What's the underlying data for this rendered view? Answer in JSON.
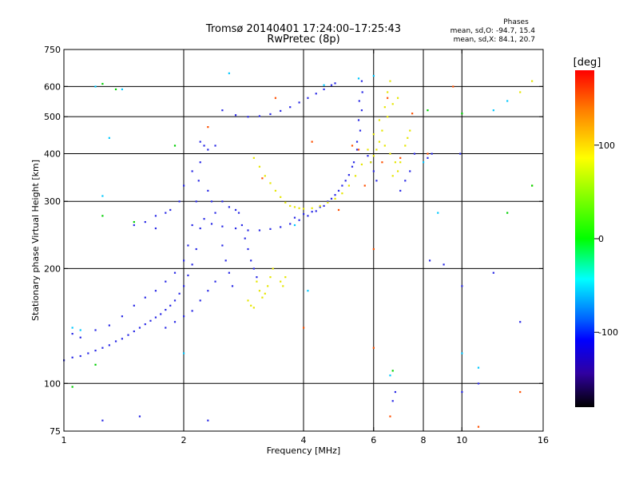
{
  "chart_data": {
    "type": "scatter",
    "title": "Tromsø 20140401 17:24:00–17:25:43",
    "subtitle": "RwPretec (8p)",
    "xlabel": "Frequency [MHz]",
    "ylabel": "Stationary phase Virtual Height [km]",
    "xscale": "log",
    "yscale": "log",
    "xlim": [
      1,
      16
    ],
    "ylim": [
      75,
      750
    ],
    "xticks": [
      1,
      2,
      4,
      6,
      8,
      10,
      16
    ],
    "xtick_labels": [
      "1",
      "2",
      "4",
      "6",
      "8",
      "10",
      "16"
    ],
    "yticks": [
      75,
      100,
      200,
      300,
      400,
      500,
      600,
      750
    ],
    "ytick_labels": [
      "75",
      "100",
      "200",
      "300",
      "400",
      "500",
      "600",
      "750"
    ],
    "x_gridlines": [
      2,
      4,
      6,
      8,
      10
    ],
    "y_gridlines": [
      100,
      200,
      300,
      400,
      500,
      600
    ],
    "grid": true,
    "phase_stats": {
      "title": "Phases",
      "line1": "mean, sd,O:  -94.7, 15.4",
      "line2": "mean, sd,X:  84.1, 20.7"
    },
    "colorbar": {
      "label": "[deg]",
      "min": -180,
      "max": 180,
      "ticks": [
        100,
        0,
        -100
      ],
      "tick_labels": [
        "100",
        "0",
        "-100"
      ],
      "colors": [
        "#ff0000",
        "#ff8000",
        "#ffff00",
        "#00ff00",
        "#00ffff",
        "#0060ff",
        "#0000ff",
        "#3000a0",
        "#000000"
      ]
    },
    "series": [
      {
        "color": "#2a2ae6",
        "phase": -95,
        "points": [
          [
            1.0,
            115
          ],
          [
            1.05,
            117
          ],
          [
            1.1,
            118
          ],
          [
            1.15,
            120
          ],
          [
            1.2,
            122
          ],
          [
            1.25,
            124
          ],
          [
            1.3,
            126
          ],
          [
            1.35,
            129
          ],
          [
            1.4,
            131
          ],
          [
            1.45,
            134
          ],
          [
            1.5,
            137
          ],
          [
            1.55,
            140
          ],
          [
            1.6,
            143
          ],
          [
            1.65,
            146
          ],
          [
            1.7,
            149
          ],
          [
            1.75,
            152
          ],
          [
            1.8,
            156
          ],
          [
            1.85,
            160
          ],
          [
            1.9,
            165
          ],
          [
            1.95,
            172
          ],
          [
            2.0,
            180
          ],
          [
            2.05,
            192
          ],
          [
            2.1,
            205
          ],
          [
            2.15,
            225
          ],
          [
            2.2,
            255
          ],
          [
            2.25,
            270
          ],
          [
            2.35,
            262
          ],
          [
            2.5,
            258
          ],
          [
            2.7,
            255
          ],
          [
            2.9,
            252
          ],
          [
            3.1,
            252
          ],
          [
            3.3,
            254
          ],
          [
            3.5,
            257
          ],
          [
            3.7,
            262
          ],
          [
            3.9,
            268
          ],
          [
            4.1,
            275
          ],
          [
            4.3,
            283
          ],
          [
            4.5,
            292
          ],
          [
            4.7,
            305
          ],
          [
            4.9,
            320
          ],
          [
            5.1,
            340
          ],
          [
            5.3,
            370
          ],
          [
            5.45,
            410
          ],
          [
            5.55,
            460
          ],
          [
            5.6,
            520
          ],
          [
            5.62,
            580
          ],
          [
            5.6,
            620
          ],
          [
            2.5,
            520
          ],
          [
            2.7,
            505
          ],
          [
            2.9,
            500
          ],
          [
            3.1,
            502
          ],
          [
            3.3,
            508
          ],
          [
            3.5,
            518
          ],
          [
            3.7,
            530
          ],
          [
            3.9,
            545
          ],
          [
            4.1,
            560
          ],
          [
            4.3,
            575
          ],
          [
            4.5,
            590
          ],
          [
            4.7,
            605
          ],
          [
            4.8,
            612
          ],
          [
            1.05,
            135
          ],
          [
            1.1,
            132
          ],
          [
            1.2,
            138
          ],
          [
            1.3,
            142
          ],
          [
            1.4,
            150
          ],
          [
            1.5,
            160
          ],
          [
            1.6,
            168
          ],
          [
            1.7,
            175
          ],
          [
            1.8,
            185
          ],
          [
            1.9,
            195
          ],
          [
            2.0,
            210
          ],
          [
            2.05,
            230
          ],
          [
            2.1,
            260
          ],
          [
            2.15,
            300
          ],
          [
            2.18,
            340
          ],
          [
            2.2,
            380
          ],
          [
            2.1,
            360
          ],
          [
            2.0,
            330
          ],
          [
            1.95,
            300
          ],
          [
            1.85,
            285
          ],
          [
            1.8,
            280
          ],
          [
            1.7,
            275
          ],
          [
            1.6,
            265
          ],
          [
            1.5,
            260
          ],
          [
            1.7,
            255
          ],
          [
            2.3,
            320
          ],
          [
            2.35,
            300
          ],
          [
            2.4,
            280
          ],
          [
            2.5,
            230
          ],
          [
            2.55,
            210
          ],
          [
            2.6,
            195
          ],
          [
            2.65,
            180
          ],
          [
            2.4,
            185
          ],
          [
            2.3,
            175
          ],
          [
            2.2,
            165
          ],
          [
            2.1,
            155
          ],
          [
            2.0,
            150
          ],
          [
            1.9,
            145
          ],
          [
            1.8,
            140
          ],
          [
            2.75,
            280
          ],
          [
            2.8,
            260
          ],
          [
            2.85,
            240
          ],
          [
            2.9,
            225
          ],
          [
            2.95,
            210
          ],
          [
            3.0,
            200
          ],
          [
            3.05,
            190
          ],
          [
            2.5,
            300
          ],
          [
            2.6,
            290
          ],
          [
            2.7,
            285
          ],
          [
            2.2,
            430
          ],
          [
            2.25,
            420
          ],
          [
            2.3,
            410
          ],
          [
            2.4,
            420
          ],
          [
            3.8,
            272
          ],
          [
            4.0,
            278
          ],
          [
            4.2,
            282
          ],
          [
            4.4,
            290
          ],
          [
            4.6,
            300
          ],
          [
            4.8,
            312
          ],
          [
            5.0,
            330
          ],
          [
            5.2,
            352
          ],
          [
            5.35,
            380
          ],
          [
            5.45,
            430
          ],
          [
            5.5,
            490
          ],
          [
            5.52,
            550
          ],
          [
            5.8,
            395
          ],
          [
            5.9,
            380
          ],
          [
            6.0,
            360
          ],
          [
            6.1,
            340
          ],
          [
            7.0,
            320
          ],
          [
            7.2,
            340
          ],
          [
            7.4,
            360
          ],
          [
            7.6,
            400
          ],
          [
            8.2,
            390
          ],
          [
            8.4,
            400
          ],
          [
            9.9,
            400
          ],
          [
            6.7,
            90
          ],
          [
            6.8,
            95
          ],
          [
            10,
            95
          ],
          [
            1.25,
            80
          ],
          [
            1.55,
            82
          ],
          [
            2.3,
            80
          ],
          [
            11,
            100
          ],
          [
            8.3,
            210
          ],
          [
            9,
            205
          ],
          [
            10,
            180
          ],
          [
            12,
            195
          ],
          [
            14,
            145
          ]
        ]
      },
      {
        "color": "#e6e600",
        "phase": 90,
        "points": [
          [
            3.0,
            390
          ],
          [
            3.1,
            370
          ],
          [
            3.2,
            350
          ],
          [
            3.3,
            335
          ],
          [
            3.4,
            320
          ],
          [
            3.5,
            308
          ],
          [
            3.6,
            298
          ],
          [
            3.7,
            292
          ],
          [
            3.8,
            290
          ],
          [
            3.9,
            288
          ],
          [
            4.0,
            287
          ],
          [
            4.2,
            288
          ],
          [
            4.4,
            292
          ],
          [
            4.6,
            298
          ],
          [
            4.8,
            305
          ],
          [
            5.0,
            315
          ],
          [
            5.2,
            330
          ],
          [
            5.4,
            350
          ],
          [
            5.6,
            375
          ],
          [
            5.8,
            410
          ],
          [
            6.0,
            450
          ],
          [
            6.2,
            490
          ],
          [
            6.4,
            530
          ],
          [
            6.5,
            580
          ],
          [
            6.6,
            620
          ],
          [
            5.9,
            380
          ],
          [
            6.0,
            395
          ],
          [
            6.1,
            410
          ],
          [
            6.2,
            430
          ],
          [
            6.3,
            460
          ],
          [
            6.5,
            500
          ],
          [
            6.7,
            540
          ],
          [
            6.9,
            560
          ],
          [
            3.05,
            185
          ],
          [
            3.1,
            175
          ],
          [
            3.15,
            168
          ],
          [
            3.2,
            172
          ],
          [
            3.25,
            180
          ],
          [
            3.3,
            190
          ],
          [
            3.35,
            200
          ],
          [
            3.5,
            185
          ],
          [
            3.55,
            180
          ],
          [
            3.6,
            190
          ],
          [
            2.9,
            165
          ],
          [
            2.95,
            160
          ],
          [
            3.0,
            158
          ],
          [
            6.7,
            350
          ],
          [
            6.9,
            360
          ],
          [
            7.0,
            380
          ],
          [
            7.2,
            420
          ],
          [
            7.3,
            440
          ],
          [
            7.4,
            460
          ],
          [
            6.4,
            420
          ],
          [
            6.6,
            400
          ],
          [
            6.8,
            380
          ],
          [
            15,
            620
          ],
          [
            15,
            330
          ],
          [
            14,
            580
          ]
        ]
      },
      {
        "color": "#00c8ff",
        "phase": -30,
        "points": [
          [
            1.05,
            140
          ],
          [
            1.1,
            138
          ],
          [
            1.25,
            310
          ],
          [
            1.3,
            440
          ],
          [
            1.2,
            600
          ],
          [
            1.4,
            590
          ],
          [
            2.0,
            120
          ],
          [
            2.6,
            650
          ],
          [
            3.8,
            260
          ],
          [
            4.5,
            605
          ],
          [
            5.5,
            630
          ],
          [
            6.0,
            640
          ],
          [
            8.7,
            280
          ],
          [
            11,
            110
          ],
          [
            12,
            520
          ],
          [
            13,
            550
          ],
          [
            6.6,
            105
          ],
          [
            8.0,
            380
          ],
          [
            10,
            120
          ],
          [
            4.1,
            175
          ]
        ]
      },
      {
        "color": "#ff5000",
        "phase": 160,
        "points": [
          [
            3.15,
            345
          ],
          [
            3.4,
            560
          ],
          [
            4.2,
            430
          ],
          [
            4.9,
            285
          ],
          [
            5.3,
            420
          ],
          [
            5.5,
            410
          ],
          [
            6.0,
            225
          ],
          [
            6.3,
            380
          ],
          [
            6.5,
            560
          ],
          [
            7.0,
            390
          ],
          [
            7.5,
            510
          ],
          [
            8.2,
            400
          ],
          [
            4.0,
            140
          ],
          [
            6.0,
            124
          ],
          [
            6.6,
            82
          ],
          [
            14,
            95
          ],
          [
            11,
            77
          ],
          [
            9.5,
            600
          ],
          [
            2.3,
            470
          ],
          [
            5.7,
            330
          ]
        ]
      },
      {
        "color": "#00d000",
        "phase": 30,
        "points": [
          [
            1.05,
            98
          ],
          [
            1.2,
            112
          ],
          [
            1.25,
            610
          ],
          [
            1.35,
            590
          ],
          [
            1.25,
            275
          ],
          [
            1.5,
            265
          ],
          [
            6.7,
            108
          ],
          [
            8.2,
            520
          ],
          [
            10,
            510
          ],
          [
            1.9,
            420
          ],
          [
            15,
            330
          ],
          [
            13,
            280
          ]
        ]
      }
    ]
  }
}
